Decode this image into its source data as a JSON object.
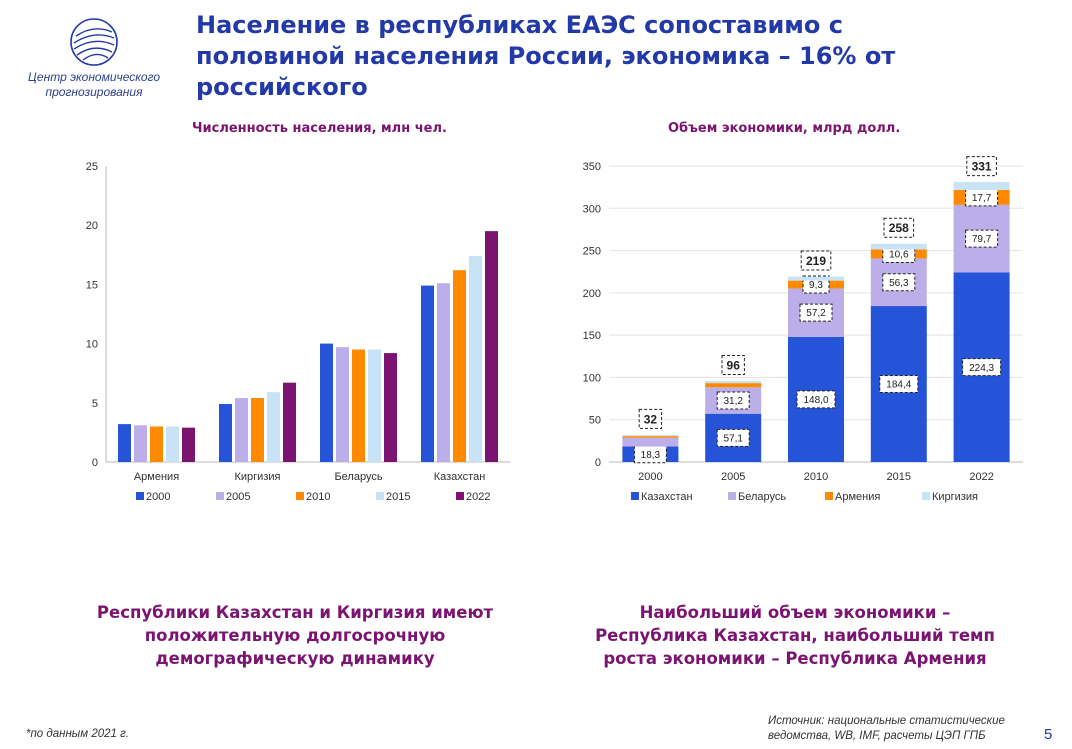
{
  "header": {
    "logo_text_line1": "Центр экономического",
    "logo_text_line2": "прогнозирования",
    "title_line1": "Население в республиках ЕАЭС сопоставимо с",
    "title_line2": "половиной населения России, экономика – 16% от",
    "title_line3": "российского"
  },
  "colors": {
    "title_blue": "#2339a8",
    "purple": "#7a1470",
    "blue": "#2554d8",
    "lavender": "#bcaee9",
    "orange": "#ff8a00",
    "light_blue": "#c9e3f6"
  },
  "chart_data": [
    {
      "type": "bar",
      "title": "Численность населения, млн чел.",
      "categories": [
        "Армения",
        "Киргизия",
        "Беларусь",
        "Казахстан"
      ],
      "series": [
        {
          "name": "2000",
          "color": "#2554d8",
          "values": [
            3.2,
            4.9,
            10.0,
            14.9
          ]
        },
        {
          "name": "2005",
          "color": "#bcaee9",
          "values": [
            3.1,
            5.4,
            9.7,
            15.1
          ]
        },
        {
          "name": "2010",
          "color": "#ff8a00",
          "values": [
            3.0,
            5.4,
            9.5,
            16.2
          ]
        },
        {
          "name": "2015",
          "color": "#c9e3f6",
          "values": [
            3.0,
            5.9,
            9.5,
            17.4
          ]
        },
        {
          "name": "2022",
          "color": "#7a1470",
          "values": [
            2.9,
            6.7,
            9.2,
            19.5
          ]
        }
      ],
      "ylim": [
        0,
        25
      ],
      "yticks": [
        0,
        5,
        10,
        15,
        20,
        25
      ],
      "grid": false,
      "legend": "bottom"
    },
    {
      "type": "bar",
      "stacked": true,
      "title": "Объем экономики, млрд долл.",
      "categories": [
        "2000",
        "2005",
        "2010",
        "2015",
        "2022"
      ],
      "series": [
        {
          "name": "Казахстан",
          "color": "#2554d8",
          "values": [
            18.3,
            57.1,
            148.0,
            184.4,
            224.3
          ],
          "labels": [
            "18,3",
            "57,1",
            "148,0",
            "184,4",
            "224,3"
          ]
        },
        {
          "name": "Беларусь",
          "color": "#bcaee9",
          "values": [
            10.4,
            31.2,
            57.2,
            56.3,
            79.7
          ],
          "labels": [
            "",
            "31,2",
            "57,2",
            "56,3",
            "79,7"
          ]
        },
        {
          "name": "Армения",
          "color": "#ff8a00",
          "values": [
            1.9,
            5.0,
            9.3,
            10.6,
            17.7
          ],
          "labels": [
            "",
            "",
            "9,3",
            "10,6",
            "17,7"
          ]
        },
        {
          "name": "Киргизия",
          "color": "#c9e3f6",
          "values": [
            1.4,
            2.5,
            4.8,
            6.7,
            9.3
          ],
          "labels": [
            "",
            "",
            "",
            "",
            ""
          ]
        }
      ],
      "totals": [
        "32",
        "96",
        "219",
        "258",
        "331"
      ],
      "ylim": [
        0,
        350
      ],
      "yticks": [
        0,
        50,
        100,
        150,
        200,
        250,
        300,
        350
      ],
      "grid": true,
      "legend": "bottom"
    }
  ],
  "summaries": {
    "left_line1": "Республики Казахстан и Киргизия имеют",
    "left_line2": "положительную долгосрочную",
    "left_line3": "демографическую динамику",
    "right_line1": "Наибольший объем экономики –",
    "right_line2": "Республика Казахстан, наибольший темп",
    "right_line3": "роста экономики – Республика Армения"
  },
  "footer": {
    "footnote": "*по данным 2021 г.",
    "source_line1": "Источник: национальные статистические",
    "source_line2": "ведомства, WB, IMF, расчеты ЦЭП ГПБ",
    "page_number": "5"
  }
}
